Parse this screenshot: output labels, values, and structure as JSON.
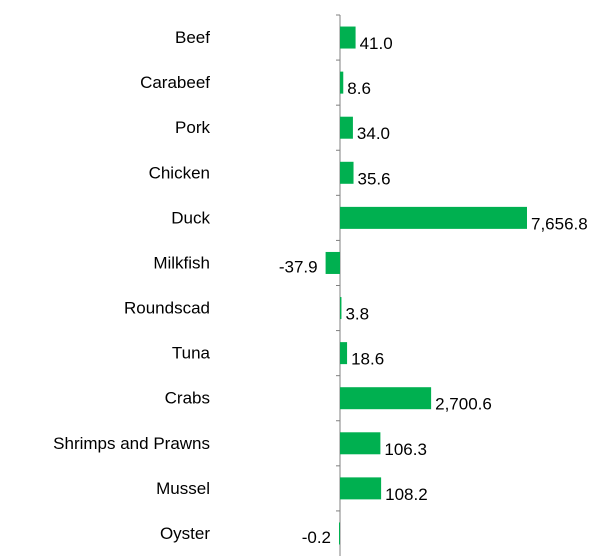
{
  "chart_data": {
    "type": "bar",
    "orientation": "horizontal",
    "title": "",
    "xlabel": "",
    "ylabel": "",
    "categories": [
      "Beef",
      "Carabeef",
      "Pork",
      "Chicken",
      "Duck",
      "Milkfish",
      "Roundscad",
      "Tuna",
      "Crabs",
      "Shrimps and Prawns",
      "Mussel",
      "Oyster"
    ],
    "values": [
      41.0,
      8.6,
      34.0,
      35.6,
      7656.8,
      -37.9,
      3.8,
      18.6,
      2700.6,
      106.3,
      108.2,
      -0.2
    ],
    "value_labels": [
      "41.0",
      "8.6",
      "34.0",
      "35.6",
      "7,656.8",
      "-37.9",
      "3.8",
      "18.6",
      "2,700.6",
      "106.3",
      "108.2",
      "-0.2"
    ],
    "bar_color": "#00b050",
    "axis_color": "#808080",
    "grid": false,
    "legend": "none"
  }
}
